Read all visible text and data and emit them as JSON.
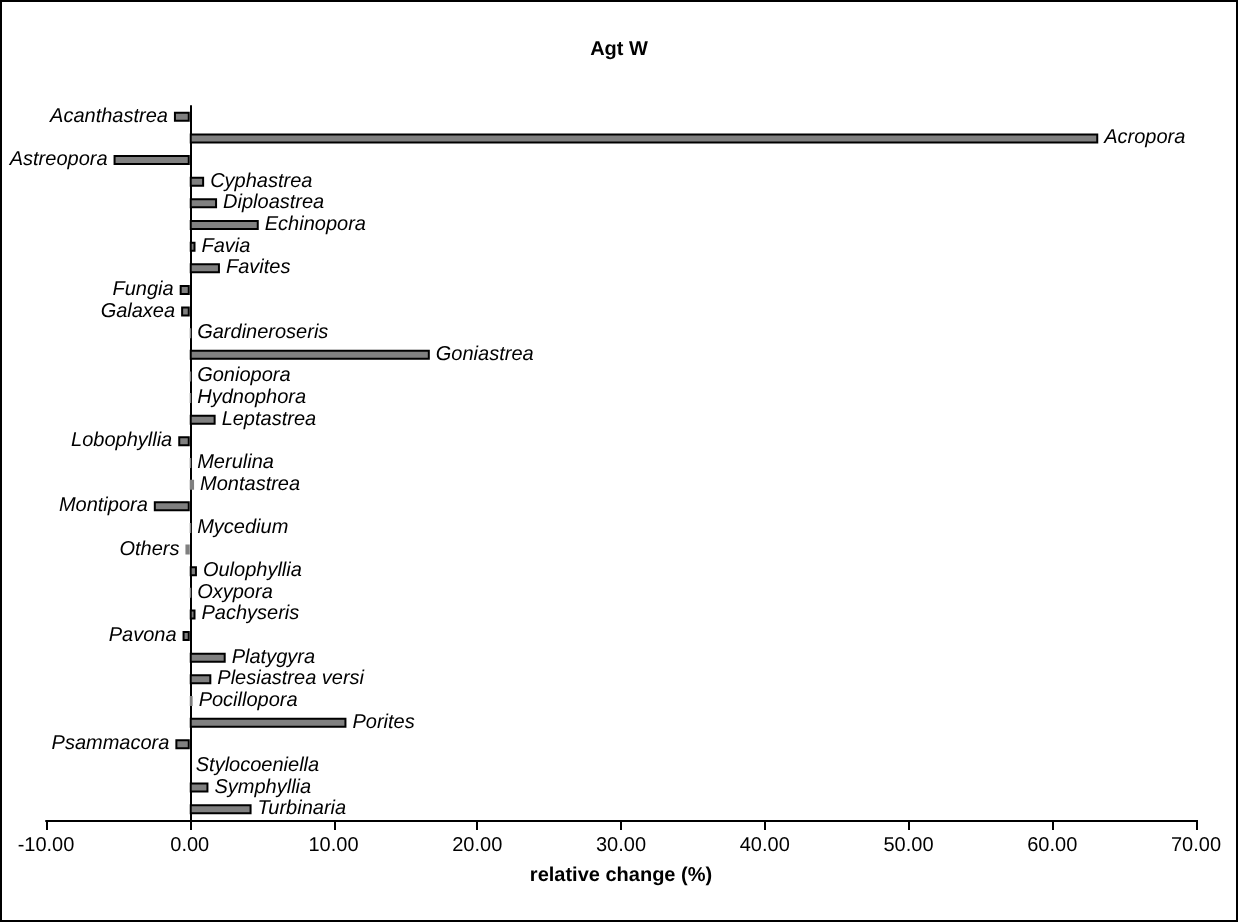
{
  "chart_data": {
    "type": "bar",
    "orientation": "horizontal",
    "title": "Agt W",
    "xlabel": "relative change (%)",
    "categories": [
      "Acanthastrea",
      "Acropora",
      "Astreopora",
      "Cyphastrea",
      "Diploastrea",
      "Echinopora",
      "Favia",
      "Favites",
      "Fungia",
      "Galaxea",
      "Gardineroseris",
      "Goniastrea",
      "Goniopora",
      "Hydnophora",
      "Leptastrea",
      "Lobophyllia",
      "Merulina",
      "Montastrea",
      "Montipora",
      "Mycedium",
      "Others",
      "Oulophyllia",
      "Oxypora",
      "Pachyseris",
      "Pavona",
      "Platygyra",
      "Plesiastrea versi",
      "Pocillopora",
      "Porites",
      "Psammacora",
      "Stylocoeniella",
      "Symphyllia",
      "Turbinaria"
    ],
    "values": [
      -1.1,
      63.2,
      -5.3,
      1.0,
      1.9,
      4.8,
      0.4,
      2.1,
      -0.7,
      -0.6,
      0.1,
      16.7,
      0.1,
      0.1,
      1.8,
      -0.8,
      0.1,
      0.3,
      -2.5,
      0.1,
      -0.3,
      0.5,
      0.1,
      0.4,
      -0.5,
      2.5,
      1.5,
      0.2,
      10.9,
      -1.0,
      0.0,
      1.3,
      4.3
    ],
    "color": "#808080",
    "xlim": [
      -10,
      70
    ],
    "xticks": [
      {
        "value": -10,
        "label": "-10.00"
      },
      {
        "value": 0,
        "label": "0.00"
      },
      {
        "value": 10,
        "label": "10.00"
      },
      {
        "value": 20,
        "label": "20.00"
      },
      {
        "value": 30,
        "label": "30.00"
      },
      {
        "value": 40,
        "label": "40.00"
      },
      {
        "value": 50,
        "label": "50.00"
      },
      {
        "value": 60,
        "label": "60.00"
      },
      {
        "value": 70,
        "label": "70.00"
      }
    ],
    "grid": false
  }
}
